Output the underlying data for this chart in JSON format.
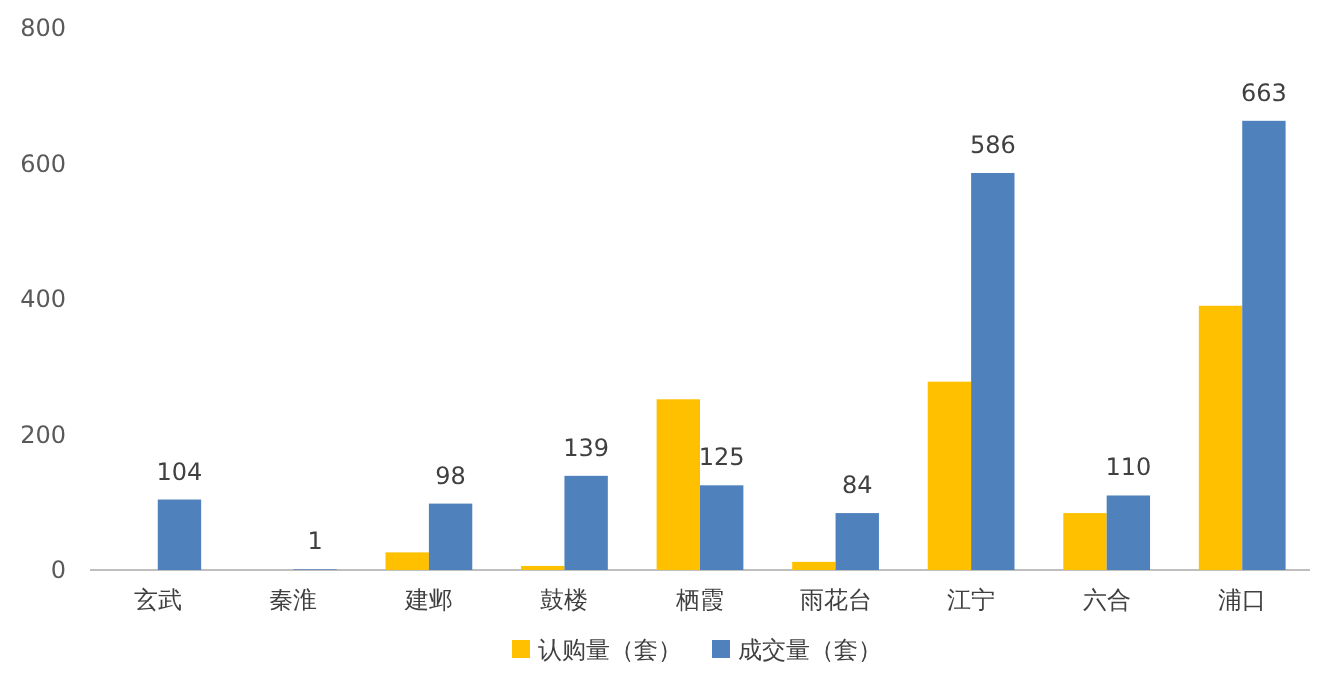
{
  "chart_data": {
    "type": "bar",
    "categories": [
      "玄武",
      "秦淮",
      "建邺",
      "鼓楼",
      "栖霞",
      "雨花台",
      "江宁",
      "六合",
      "浦口"
    ],
    "series": [
      {
        "name": "认购量（套）",
        "color": "#ffc000",
        "values": [
          0,
          0,
          26,
          6,
          252,
          12,
          278,
          84,
          390
        ]
      },
      {
        "name": "成交量（套）",
        "color": "#4f81bd",
        "values": [
          104,
          1,
          98,
          139,
          125,
          84,
          586,
          110,
          663
        ],
        "value_labels": [
          "104",
          "1",
          "98",
          "139",
          "125",
          "84",
          "586",
          "110",
          "663"
        ]
      }
    ],
    "ylim": [
      0,
      800
    ],
    "yticks": [
      0,
      200,
      400,
      600,
      800
    ],
    "legend": "bottom"
  }
}
